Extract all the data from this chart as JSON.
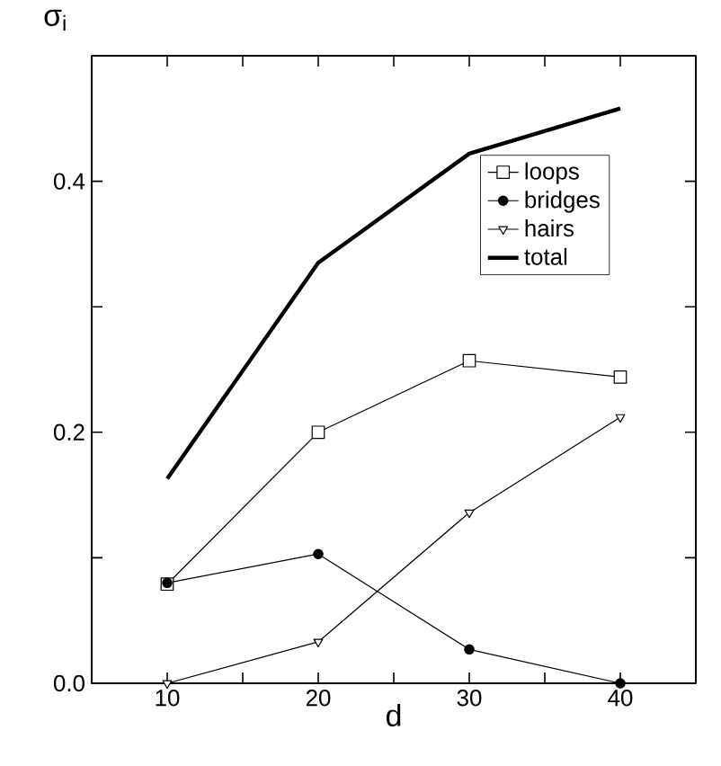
{
  "chart_data": {
    "type": "line",
    "xlabel": "d",
    "ylabel": "σ$_{i}$",
    "x": [
      10,
      20,
      30,
      40
    ],
    "series": [
      {
        "name": "loops",
        "color": "#000000",
        "marker": "square",
        "values": [
          0.079,
          0.2,
          0.257,
          0.244
        ]
      },
      {
        "name": "bridges",
        "color": "#000000",
        "marker": "circle",
        "values": [
          0.08,
          0.103,
          0.027,
          0.0
        ]
      },
      {
        "name": "hairs",
        "color": "#000000",
        "marker": "triangle",
        "values": [
          0.0,
          0.033,
          0.136,
          0.212
        ]
      },
      {
        "name": "total",
        "color": "#000000",
        "marker": "none",
        "values": [
          0.163,
          0.335,
          0.422,
          0.458
        ]
      }
    ],
    "xlim": [
      5,
      45
    ],
    "ylim": [
      0,
      0.5
    ],
    "xticks": [
      10,
      {
        "value": 15,
        "label": null
      },
      20,
      {
        "value": 25,
        "label": null
      },
      30,
      {
        "value": 35,
        "label": null
      },
      40
    ],
    "yticks": [
      {
        "value": 0,
        "label": "0.0"
      },
      {
        "value": 0.1,
        "label": null
      },
      {
        "value": 0.2,
        "label": "0.2"
      },
      {
        "value": 0.3,
        "label": null
      },
      {
        "value": 0.4,
        "label": "0.4"
      }
    ],
    "legend": "top right",
    "grid": false,
    "line_style": "solid"
  }
}
